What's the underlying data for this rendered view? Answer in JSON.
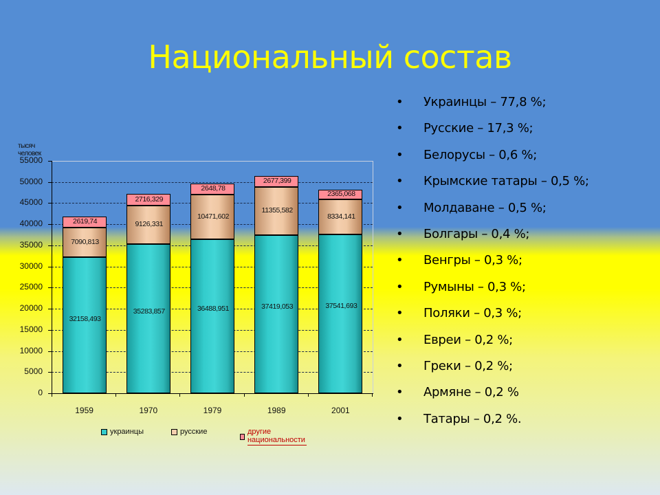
{
  "slide": {
    "title": "Национальный состав",
    "bullets": [
      "Украинцы – 77,8 %;",
      "Русские – 17,3 %;",
      "Белорусы – 0,6 %;",
      "Крымские татары – 0,5 %;",
      "Молдаване – 0,5 %;",
      "Болгары – 0,4 %;",
      "Венгры – 0,3 %;",
      "Румыны – 0,3 %;",
      "Поляки – 0,3 %;",
      "Евреи – 0,2 %;",
      "Греки – 0,2 %;",
      "Армяне – 0,2 %",
      "Татары – 0,2 %."
    ]
  },
  "colors": {
    "background_top": "#548dd4",
    "background_band": "#ffff00",
    "title": "#ffff00",
    "ukrainians": "#33cccc",
    "russians": "#f4cfae",
    "others": "#ff8c96",
    "legend_others_text": "#c00000"
  },
  "chart_data": {
    "type": "bar",
    "stacked": true,
    "title": "",
    "xlabel": "",
    "ylabel": "тысяч человек",
    "ylim": [
      0,
      55000
    ],
    "yticks": [
      "55000",
      "50000",
      "45000",
      "40000",
      "35000",
      "30000",
      "25000",
      "20000",
      "15000",
      "10000",
      "5000",
      "0"
    ],
    "grid": true,
    "legend_position": "bottom",
    "categories": [
      "1959",
      "1970",
      "1979",
      "1989",
      "2001"
    ],
    "series": [
      {
        "name": "украинцы",
        "values": [
          32158.493,
          35283.857,
          36488.951,
          37419.053,
          37541.693
        ],
        "labels": [
          "32158,493",
          "35283,857",
          "36488,951",
          "37419,053",
          "37541,693"
        ]
      },
      {
        "name": "русские",
        "values": [
          7090.813,
          9126.331,
          10471.602,
          11355.582,
          8334.141
        ],
        "labels": [
          "7090,813",
          "9126,331",
          "10471,602",
          "11355,582",
          "8334,141"
        ]
      },
      {
        "name": "другие национальности",
        "values": [
          2619.74,
          2716.329,
          2648.78,
          2677.399,
          2365.068
        ],
        "labels": [
          "2619,74",
          "2716,329",
          "2648,78",
          "2677,399",
          "2365,068"
        ]
      }
    ]
  }
}
